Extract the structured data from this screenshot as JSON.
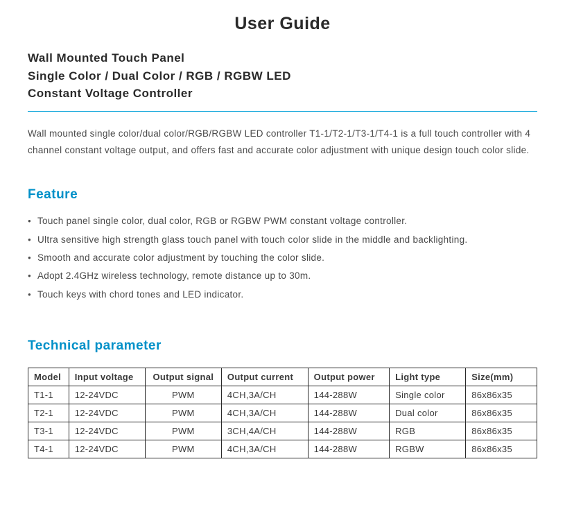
{
  "title": "User Guide",
  "subtitle_lines": [
    "Wall Mounted Touch Panel",
    "Single Color / Dual Color / RGB / RGBW LED",
    "Constant Voltage Controller"
  ],
  "intro": "Wall mounted single color/dual color/RGB/RGBW LED controller T1-1/T2-1/T3-1/T4-1 is a full touch controller with 4 channel constant voltage output, and offers fast and accurate color adjustment with unique design touch color slide.",
  "feature_heading": "Feature",
  "features": [
    "Touch panel single color, dual color, RGB or RGBW PWM constant voltage controller.",
    "Ultra sensitive high strength glass touch panel with touch color slide in the middle and backlighting.",
    "Smooth and accurate color adjustment by touching the color slide.",
    "Adopt 2.4GHz wireless technology, remote distance up to 30m.",
    "Touch keys with chord tones and LED indicator."
  ],
  "tech_heading": "Technical parameter",
  "table": {
    "headers": [
      "Model",
      "Input voltage",
      "Output signal",
      "Output current",
      "Output power",
      "Light type",
      "Size(mm)"
    ],
    "rows": [
      [
        "T1-1",
        "12-24VDC",
        "PWM",
        "4CH,3A/CH",
        "144-288W",
        "Single color",
        "86x86x35"
      ],
      [
        "T2-1",
        "12-24VDC",
        "PWM",
        "4CH,3A/CH",
        "144-288W",
        "Dual color",
        "86x86x35"
      ],
      [
        "T3-1",
        "12-24VDC",
        "PWM",
        "3CH,4A/CH",
        "144-288W",
        "RGB",
        "86x86x35"
      ],
      [
        "T4-1",
        "12-24VDC",
        "PWM",
        "4CH,3A/CH",
        "144-288W",
        "RGBW",
        "86x86x35"
      ]
    ]
  },
  "colors": {
    "accent": "#0090c8",
    "divider": "#00a0d8",
    "text": "#3a3a3a",
    "border": "#2a2a2a"
  }
}
